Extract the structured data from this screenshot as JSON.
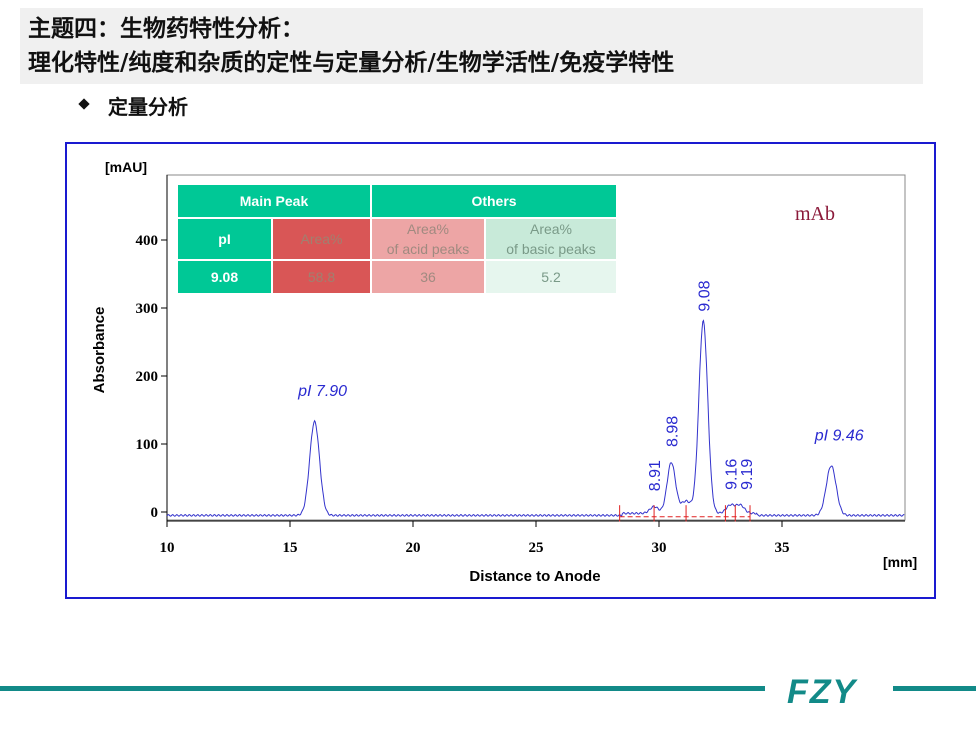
{
  "header": {
    "title_line1": "主题四：生物药特性分析：",
    "title_line2": "理化特性/纯度和杂质的定性与定量分析/生物学活性/免疫学特性",
    "subtitle": "定量分析"
  },
  "table": {
    "main_peak": "Main Peak",
    "others": "Others",
    "pi_label": "pI",
    "area_label": "Area%",
    "acid_label": "Area%\nof acid peaks",
    "acid_l1": "Area%",
    "acid_l2": "of acid peaks",
    "basic_l1": "Area%",
    "basic_l2": "of basic peaks",
    "pi_value": "9.08",
    "area_value": "58.8",
    "acid_value": "36",
    "basic_value": "5.2"
  },
  "logo": "FZY",
  "colors": {
    "accent": "#00c896",
    "line": "#3333cc",
    "red": "#d94f4f",
    "teal": "#128a88"
  },
  "chart_data": {
    "type": "line",
    "sample_label": "mAb",
    "ylabel": "Absorbance",
    "yunit": "[mAU]",
    "xlabel": "Distance to Anode",
    "xunit": "[mm]",
    "xlim": [
      10,
      40
    ],
    "ylim": [
      -10,
      500
    ],
    "xticks": [
      10,
      15,
      20,
      25,
      30,
      35
    ],
    "yticks": [
      0,
      100,
      200,
      300,
      400
    ],
    "peaks": [
      {
        "x": 16.0,
        "height": 138,
        "label": "pI 7.90",
        "italic": true
      },
      {
        "x": 29.8,
        "height": 10,
        "label": "8.91"
      },
      {
        "x": 30.5,
        "height": 75,
        "label": "8.98"
      },
      {
        "x": 31.8,
        "height": 283,
        "label": "9.08"
      },
      {
        "x": 32.9,
        "height": 12,
        "label": "9.16"
      },
      {
        "x": 33.3,
        "height": 12,
        "label": "9.19"
      },
      {
        "x": 37.0,
        "height": 73,
        "label": "pI 9.46",
        "italic": true
      }
    ]
  }
}
